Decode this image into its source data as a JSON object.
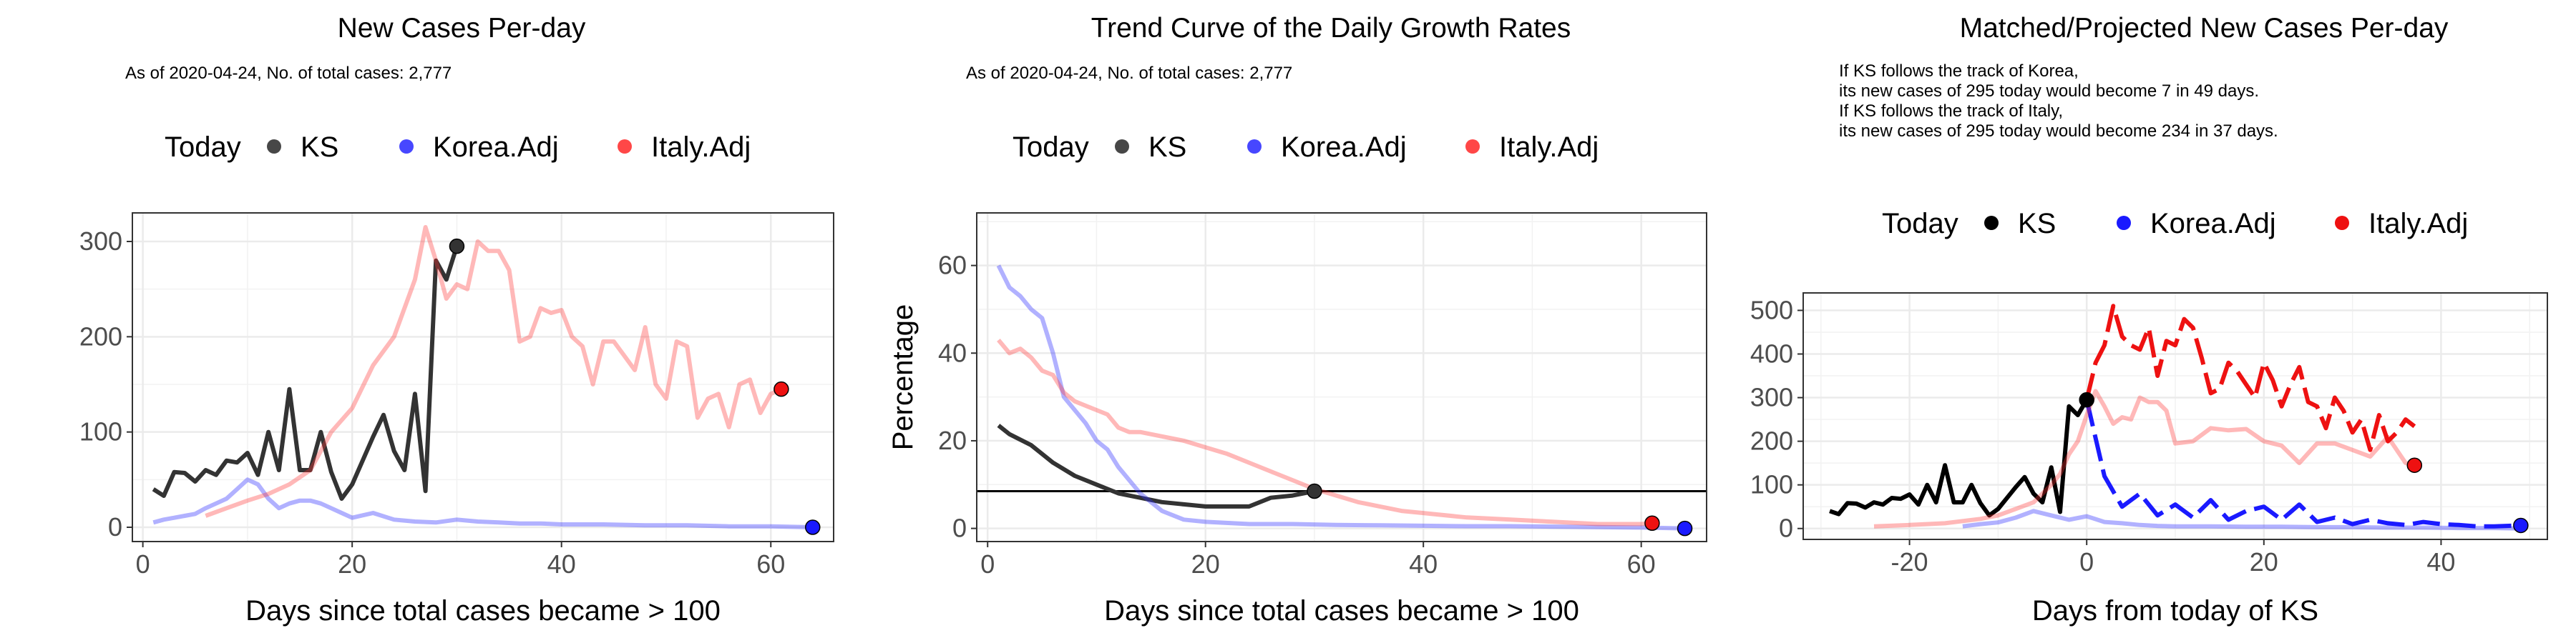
{
  "legend": {
    "title": "Today",
    "items": [
      "KS",
      "Korea.Adj",
      "Italy.Adj"
    ]
  },
  "colors": {
    "KS": "#333333",
    "Korea": "#3333ff",
    "Italy": "#ff3333",
    "grid": "#ebebeb",
    "axis": "#333333"
  },
  "chart_data": [
    {
      "type": "line",
      "title": "New Cases Per-day",
      "subtitle_lines": [
        "As of 2020-04-24, No. of total cases: 2,777"
      ],
      "xlabel": "Days since total cases became > 100",
      "ylabel": "",
      "xlim": [
        -1,
        66
      ],
      "ylim": [
        -15,
        330
      ],
      "xticks": [
        0,
        20,
        40,
        60
      ],
      "yticks": [
        0,
        100,
        200,
        300
      ],
      "grid": true,
      "legend_position": "top",
      "series": [
        {
          "name": "KS",
          "color": "#333333",
          "opacity": 1,
          "x": [
            1,
            2,
            3,
            4,
            5,
            6,
            7,
            8,
            9,
            10,
            11,
            12,
            13,
            14,
            15,
            16,
            17,
            18,
            19,
            20,
            21,
            22,
            23,
            24,
            25,
            26,
            27,
            28,
            29,
            30
          ],
          "y": [
            40,
            33,
            58,
            57,
            48,
            60,
            55,
            70,
            68,
            78,
            55,
            100,
            60,
            145,
            60,
            60,
            100,
            58,
            30,
            45,
            70,
            95,
            118,
            80,
            60,
            140,
            38,
            280,
            260,
            295
          ]
        },
        {
          "name": "Korea.Adj",
          "color": "#3333ff",
          "opacity": 0.38,
          "x": [
            1,
            2,
            3,
            4,
            5,
            6,
            7,
            8,
            9,
            10,
            11,
            12,
            13,
            14,
            15,
            16,
            17,
            18,
            19,
            20,
            22,
            24,
            26,
            28,
            30,
            32,
            34,
            36,
            38,
            40,
            44,
            48,
            52,
            56,
            60,
            64
          ],
          "y": [
            5,
            8,
            10,
            12,
            14,
            20,
            25,
            30,
            40,
            50,
            45,
            30,
            20,
            25,
            28,
            28,
            25,
            20,
            15,
            10,
            15,
            8,
            6,
            5,
            8,
            6,
            5,
            4,
            4,
            3,
            3,
            2,
            2,
            1,
            1,
            0
          ]
        },
        {
          "name": "Italy.Adj",
          "color": "#ff3333",
          "opacity": 0.35,
          "x": [
            6,
            8,
            10,
            12,
            14,
            16,
            18,
            20,
            22,
            24,
            26,
            27,
            28,
            29,
            30,
            31,
            32,
            33,
            34,
            35,
            36,
            37,
            38,
            39,
            40,
            41,
            42,
            43,
            44,
            45,
            46,
            47,
            48,
            49,
            50,
            51,
            52,
            53,
            54,
            55,
            56,
            57,
            58,
            59,
            60,
            61
          ],
          "y": [
            12,
            20,
            28,
            35,
            45,
            60,
            100,
            125,
            170,
            200,
            260,
            315,
            280,
            240,
            255,
            250,
            300,
            290,
            290,
            270,
            195,
            200,
            230,
            225,
            228,
            200,
            190,
            150,
            195,
            195,
            180,
            165,
            210,
            150,
            135,
            195,
            190,
            115,
            135,
            140,
            105,
            150,
            155,
            120,
            140,
            145
          ]
        }
      ],
      "today_points": [
        {
          "series": "KS",
          "x": 30,
          "y": 295
        },
        {
          "series": "Korea.Adj",
          "x": 64,
          "y": 0
        },
        {
          "series": "Italy.Adj",
          "x": 61,
          "y": 145
        }
      ]
    },
    {
      "type": "line",
      "title": "Trend Curve of the Daily Growth Rates",
      "subtitle_lines": [
        "As of 2020-04-24, No. of total cases: 2,777"
      ],
      "xlabel": "Days since total cases became > 100",
      "ylabel": "Percentage",
      "xlim": [
        -1,
        66
      ],
      "ylim": [
        -3,
        72
      ],
      "xticks": [
        0,
        20,
        40,
        60
      ],
      "yticks": [
        0,
        20,
        40,
        60
      ],
      "grid": true,
      "hline": 8.5,
      "legend_position": "top",
      "series": [
        {
          "name": "KS",
          "color": "#333333",
          "opacity": 1,
          "x": [
            1,
            2,
            4,
            6,
            8,
            10,
            12,
            14,
            16,
            18,
            20,
            22,
            24,
            26,
            28,
            30
          ],
          "y": [
            23.5,
            21.5,
            19,
            15,
            12,
            10,
            8,
            7,
            6,
            5.5,
            5,
            5,
            5,
            7,
            7.5,
            8.5
          ]
        },
        {
          "name": "Korea.Adj",
          "color": "#3333ff",
          "opacity": 0.38,
          "x": [
            1,
            2,
            3,
            4,
            5,
            6,
            7,
            8,
            9,
            10,
            11,
            12,
            14,
            16,
            18,
            20,
            24,
            28,
            32,
            36,
            40,
            44,
            48,
            52,
            56,
            60,
            64
          ],
          "y": [
            60,
            55,
            53,
            50,
            48,
            40,
            30,
            27,
            24,
            20,
            18,
            14,
            8,
            4,
            2,
            1.5,
            1,
            1,
            0.8,
            0.7,
            0.6,
            0.5,
            0.5,
            0.4,
            0.3,
            0.2,
            0
          ]
        },
        {
          "name": "Italy.Adj",
          "color": "#ff3333",
          "opacity": 0.35,
          "x": [
            1,
            2,
            3,
            4,
            5,
            6,
            7,
            8,
            9,
            10,
            11,
            12,
            13,
            14,
            16,
            18,
            20,
            22,
            24,
            26,
            28,
            30,
            32,
            34,
            36,
            38,
            40,
            44,
            48,
            52,
            56,
            60,
            61
          ],
          "y": [
            43,
            40,
            41,
            39,
            36,
            35,
            31,
            29,
            28,
            27,
            26,
            23,
            22,
            22,
            21,
            20,
            18.5,
            17,
            15,
            13,
            11,
            9,
            7.5,
            6,
            5,
            4,
            3.5,
            2.5,
            2,
            1.5,
            1,
            1,
            1.2
          ]
        }
      ],
      "today_points": [
        {
          "series": "KS",
          "x": 30,
          "y": 8.5
        },
        {
          "series": "Korea.Adj",
          "x": 64,
          "y": 0
        },
        {
          "series": "Italy.Adj",
          "x": 61,
          "y": 1.2
        }
      ]
    },
    {
      "type": "line",
      "title": "Matched/Projected New Cases Per-day",
      "subtitle_lines": [
        "If KS follows the track of Korea,",
        "its new cases of 295 today would become 7 in 49 days.",
        "If KS follows the track of Italy,",
        "its new cases of 295 today would become 234 in 37 days."
      ],
      "xlabel": "Days from today of KS",
      "ylabel": "",
      "xlim": [
        -32,
        52
      ],
      "ylim": [
        -25,
        540
      ],
      "xticks": [
        -20,
        0,
        20,
        40
      ],
      "yticks": [
        0,
        100,
        200,
        300,
        400,
        500
      ],
      "grid": true,
      "legend_position": "top",
      "series": [
        {
          "name": "KS",
          "color": "#000000",
          "opacity": 1,
          "x": [
            -29,
            -28,
            -27,
            -26,
            -25,
            -24,
            -23,
            -22,
            -21,
            -20,
            -19,
            -18,
            -17,
            -16,
            -15,
            -14,
            -13,
            -12,
            -11,
            -10,
            -9,
            -8,
            -7,
            -6,
            -5,
            -4,
            -3,
            -2,
            -1,
            0
          ],
          "y": [
            40,
            33,
            58,
            57,
            48,
            60,
            55,
            70,
            68,
            78,
            55,
            100,
            60,
            145,
            60,
            60,
            100,
            58,
            30,
            45,
            70,
            95,
            118,
            80,
            60,
            140,
            38,
            280,
            260,
            295
          ]
        },
        {
          "name": "Korea.Adj (matched)",
          "color": "#3333ff",
          "opacity": 0.38,
          "x": [
            -14,
            -12,
            -10,
            -8,
            -6,
            -4,
            -2,
            0,
            2,
            4,
            6,
            8,
            10,
            14,
            18,
            22,
            26,
            30,
            34,
            38,
            42,
            46,
            49
          ],
          "y": [
            5,
            10,
            14,
            25,
            40,
            30,
            20,
            28,
            15,
            12,
            8,
            6,
            5,
            5,
            4,
            4,
            3,
            3,
            2,
            2,
            1,
            1,
            0
          ]
        },
        {
          "name": "Korea.Adj (projected)",
          "color": "#1a1aff",
          "opacity": 1,
          "dashed": true,
          "x": [
            0,
            2,
            4,
            6,
            8,
            10,
            12,
            14,
            16,
            18,
            20,
            22,
            24,
            26,
            28,
            30,
            32,
            34,
            36,
            38,
            40,
            42,
            44,
            46,
            49
          ],
          "y": [
            295,
            120,
            50,
            80,
            30,
            55,
            25,
            65,
            20,
            40,
            50,
            20,
            55,
            15,
            25,
            10,
            20,
            12,
            8,
            15,
            10,
            8,
            5,
            5,
            7
          ]
        },
        {
          "name": "Italy.Adj (matched)",
          "color": "#ff3333",
          "opacity": 0.35,
          "x": [
            -24,
            -20,
            -16,
            -12,
            -10,
            -8,
            -6,
            -4,
            -3,
            -2,
            -1,
            0,
            1,
            2,
            3,
            4,
            5,
            6,
            7,
            8,
            9,
            10,
            12,
            14,
            16,
            18,
            20,
            22,
            24,
            26,
            28,
            30,
            32,
            34,
            36,
            37
          ],
          "y": [
            5,
            8,
            12,
            22,
            30,
            45,
            60,
            100,
            125,
            170,
            200,
            260,
            315,
            280,
            240,
            255,
            250,
            300,
            290,
            290,
            270,
            195,
            200,
            230,
            225,
            228,
            200,
            190,
            150,
            195,
            195,
            180,
            165,
            210,
            150,
            145
          ]
        },
        {
          "name": "Italy.Adj (projected)",
          "color": "#ee1111",
          "opacity": 1,
          "dashed": true,
          "x": [
            0,
            1,
            2,
            3,
            4,
            5,
            6,
            7,
            8,
            9,
            10,
            11,
            12,
            13,
            14,
            15,
            16,
            17,
            18,
            19,
            20,
            21,
            22,
            23,
            24,
            25,
            26,
            27,
            28,
            29,
            30,
            31,
            32,
            33,
            34,
            35,
            36,
            37
          ],
          "y": [
            295,
            380,
            420,
            510,
            440,
            420,
            410,
            460,
            350,
            430,
            420,
            480,
            460,
            390,
            310,
            320,
            380,
            360,
            330,
            300,
            380,
            340,
            280,
            330,
            370,
            290,
            280,
            230,
            300,
            270,
            220,
            250,
            180,
            260,
            200,
            220,
            250,
            234
          ]
        }
      ],
      "today_points": [
        {
          "series": "KS",
          "x": 0,
          "y": 295
        },
        {
          "series": "Korea.Adj",
          "x": 49,
          "y": 7
        },
        {
          "series": "Italy.Adj",
          "x": 37,
          "y": 145
        }
      ]
    }
  ]
}
